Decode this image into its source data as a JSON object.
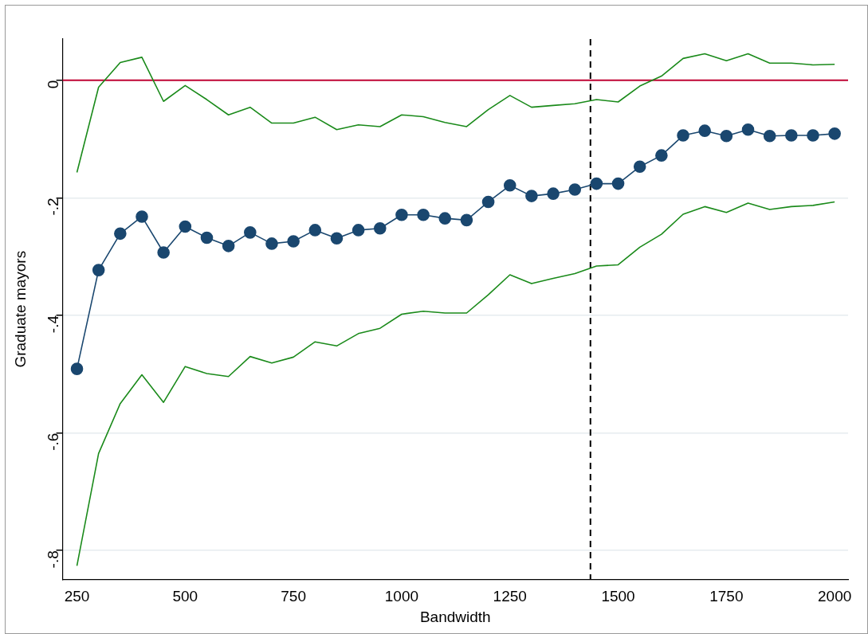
{
  "chart_data": {
    "type": "line",
    "xlabel": "Bandwidth",
    "ylabel": "Graduate mayors",
    "x": [
      250,
      300,
      350,
      400,
      450,
      500,
      550,
      600,
      650,
      700,
      750,
      800,
      850,
      900,
      950,
      1000,
      1050,
      1100,
      1150,
      1200,
      1250,
      1300,
      1350,
      1400,
      1450,
      1500,
      1550,
      1600,
      1650,
      1700,
      1750,
      1800,
      1850,
      1900,
      1950,
      2000
    ],
    "series": [
      {
        "color": "#1a476f",
        "marker": "circle",
        "values": [
          -0.491,
          -0.323,
          -0.261,
          -0.232,
          -0.293,
          -0.249,
          -0.268,
          -0.282,
          -0.259,
          -0.278,
          -0.274,
          -0.255,
          -0.269,
          -0.255,
          -0.252,
          -0.229,
          -0.229,
          -0.235,
          -0.238,
          -0.207,
          -0.179,
          -0.197,
          -0.193,
          -0.186,
          -0.176,
          -0.176,
          -0.147,
          -0.128,
          -0.094,
          -0.086,
          -0.095,
          -0.084,
          -0.095,
          -0.094,
          -0.094,
          -0.091
        ]
      },
      {
        "color": "#1a8a1a",
        "marker": "none",
        "values": [
          -0.157,
          -0.012,
          0.03,
          0.039,
          -0.036,
          -0.009,
          -0.033,
          -0.059,
          -0.046,
          -0.073,
          -0.073,
          -0.063,
          -0.084,
          -0.076,
          -0.079,
          -0.059,
          -0.062,
          -0.072,
          -0.079,
          -0.05,
          -0.026,
          -0.046,
          -0.043,
          -0.04,
          -0.033,
          -0.037,
          -0.01,
          0.007,
          0.037,
          0.045,
          0.033,
          0.045,
          0.029,
          0.029,
          0.026,
          0.027
        ]
      },
      {
        "color": "#1a8a1a",
        "marker": "none",
        "values": [
          -0.826,
          -0.635,
          -0.55,
          -0.501,
          -0.548,
          -0.487,
          -0.499,
          -0.504,
          -0.47,
          -0.481,
          -0.471,
          -0.445,
          -0.452,
          -0.431,
          -0.422,
          -0.398,
          -0.393,
          -0.396,
          -0.396,
          -0.365,
          -0.331,
          -0.346,
          -0.337,
          -0.329,
          -0.316,
          -0.314,
          -0.284,
          -0.262,
          -0.228,
          -0.215,
          -0.225,
          -0.209,
          -0.22,
          -0.215,
          -0.213,
          -0.207
        ]
      }
    ],
    "xlim": [
      217,
      2031
    ],
    "xticks": [
      250,
      500,
      750,
      1000,
      1250,
      1500,
      1750,
      2000
    ],
    "ylim": [
      -0.849,
      0.07
    ],
    "yticks": [
      {
        "value": 0,
        "label": "0"
      },
      {
        "value": -0.2,
        "label": "-.2"
      },
      {
        "value": -0.4,
        "label": "-.4"
      },
      {
        "value": -0.6,
        "label": "-.6"
      },
      {
        "value": -0.8,
        "label": "-.8"
      }
    ],
    "ref_lines": [
      {
        "axis": "y",
        "value": 0,
        "color": "#c10534",
        "line_style": "solid"
      },
      {
        "axis": "x",
        "value": 1436,
        "color": "#000000",
        "line_style": "dashed"
      }
    ],
    "grid": "y",
    "legend": false
  }
}
